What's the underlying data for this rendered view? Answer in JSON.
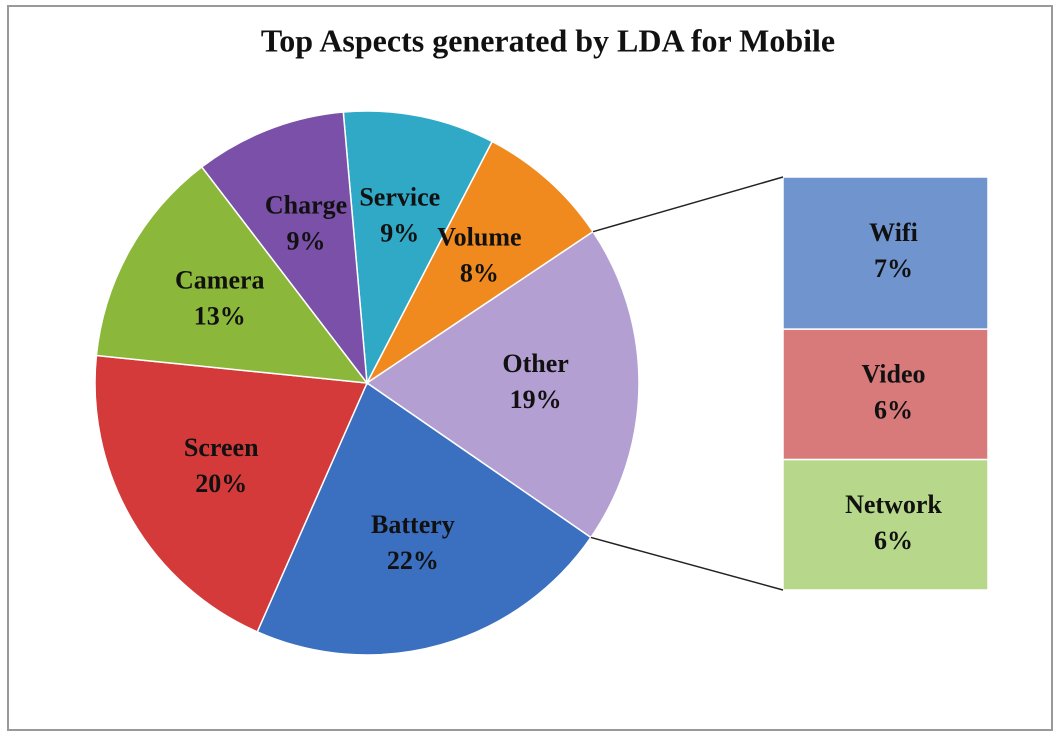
{
  "chart_data": {
    "type": "pie",
    "title": "Top Aspects generated by LDA for Mobile",
    "categories": [
      "Service",
      "Volume",
      "Other",
      "Battery",
      "Screen",
      "Camera",
      "Charge"
    ],
    "values": [
      9,
      8,
      19,
      22,
      20,
      13,
      9
    ],
    "value_labels": [
      "9%",
      "8%",
      "19%",
      "22%",
      "20%",
      "13%",
      "9%"
    ],
    "colors": [
      "#2fa9c6",
      "#f08a1f",
      "#b39fd1",
      "#3b6fbf",
      "#d43a3a",
      "#8bb83b",
      "#7b50a8"
    ],
    "breakdown": {
      "categories": [
        "Wifi",
        "Video",
        "Network"
      ],
      "values": [
        7,
        6,
        6
      ],
      "value_labels": [
        "7%",
        "6%",
        "6%"
      ],
      "colors": [
        "#6f94ce",
        "#d97a7a",
        "#b7d88b"
      ]
    }
  }
}
